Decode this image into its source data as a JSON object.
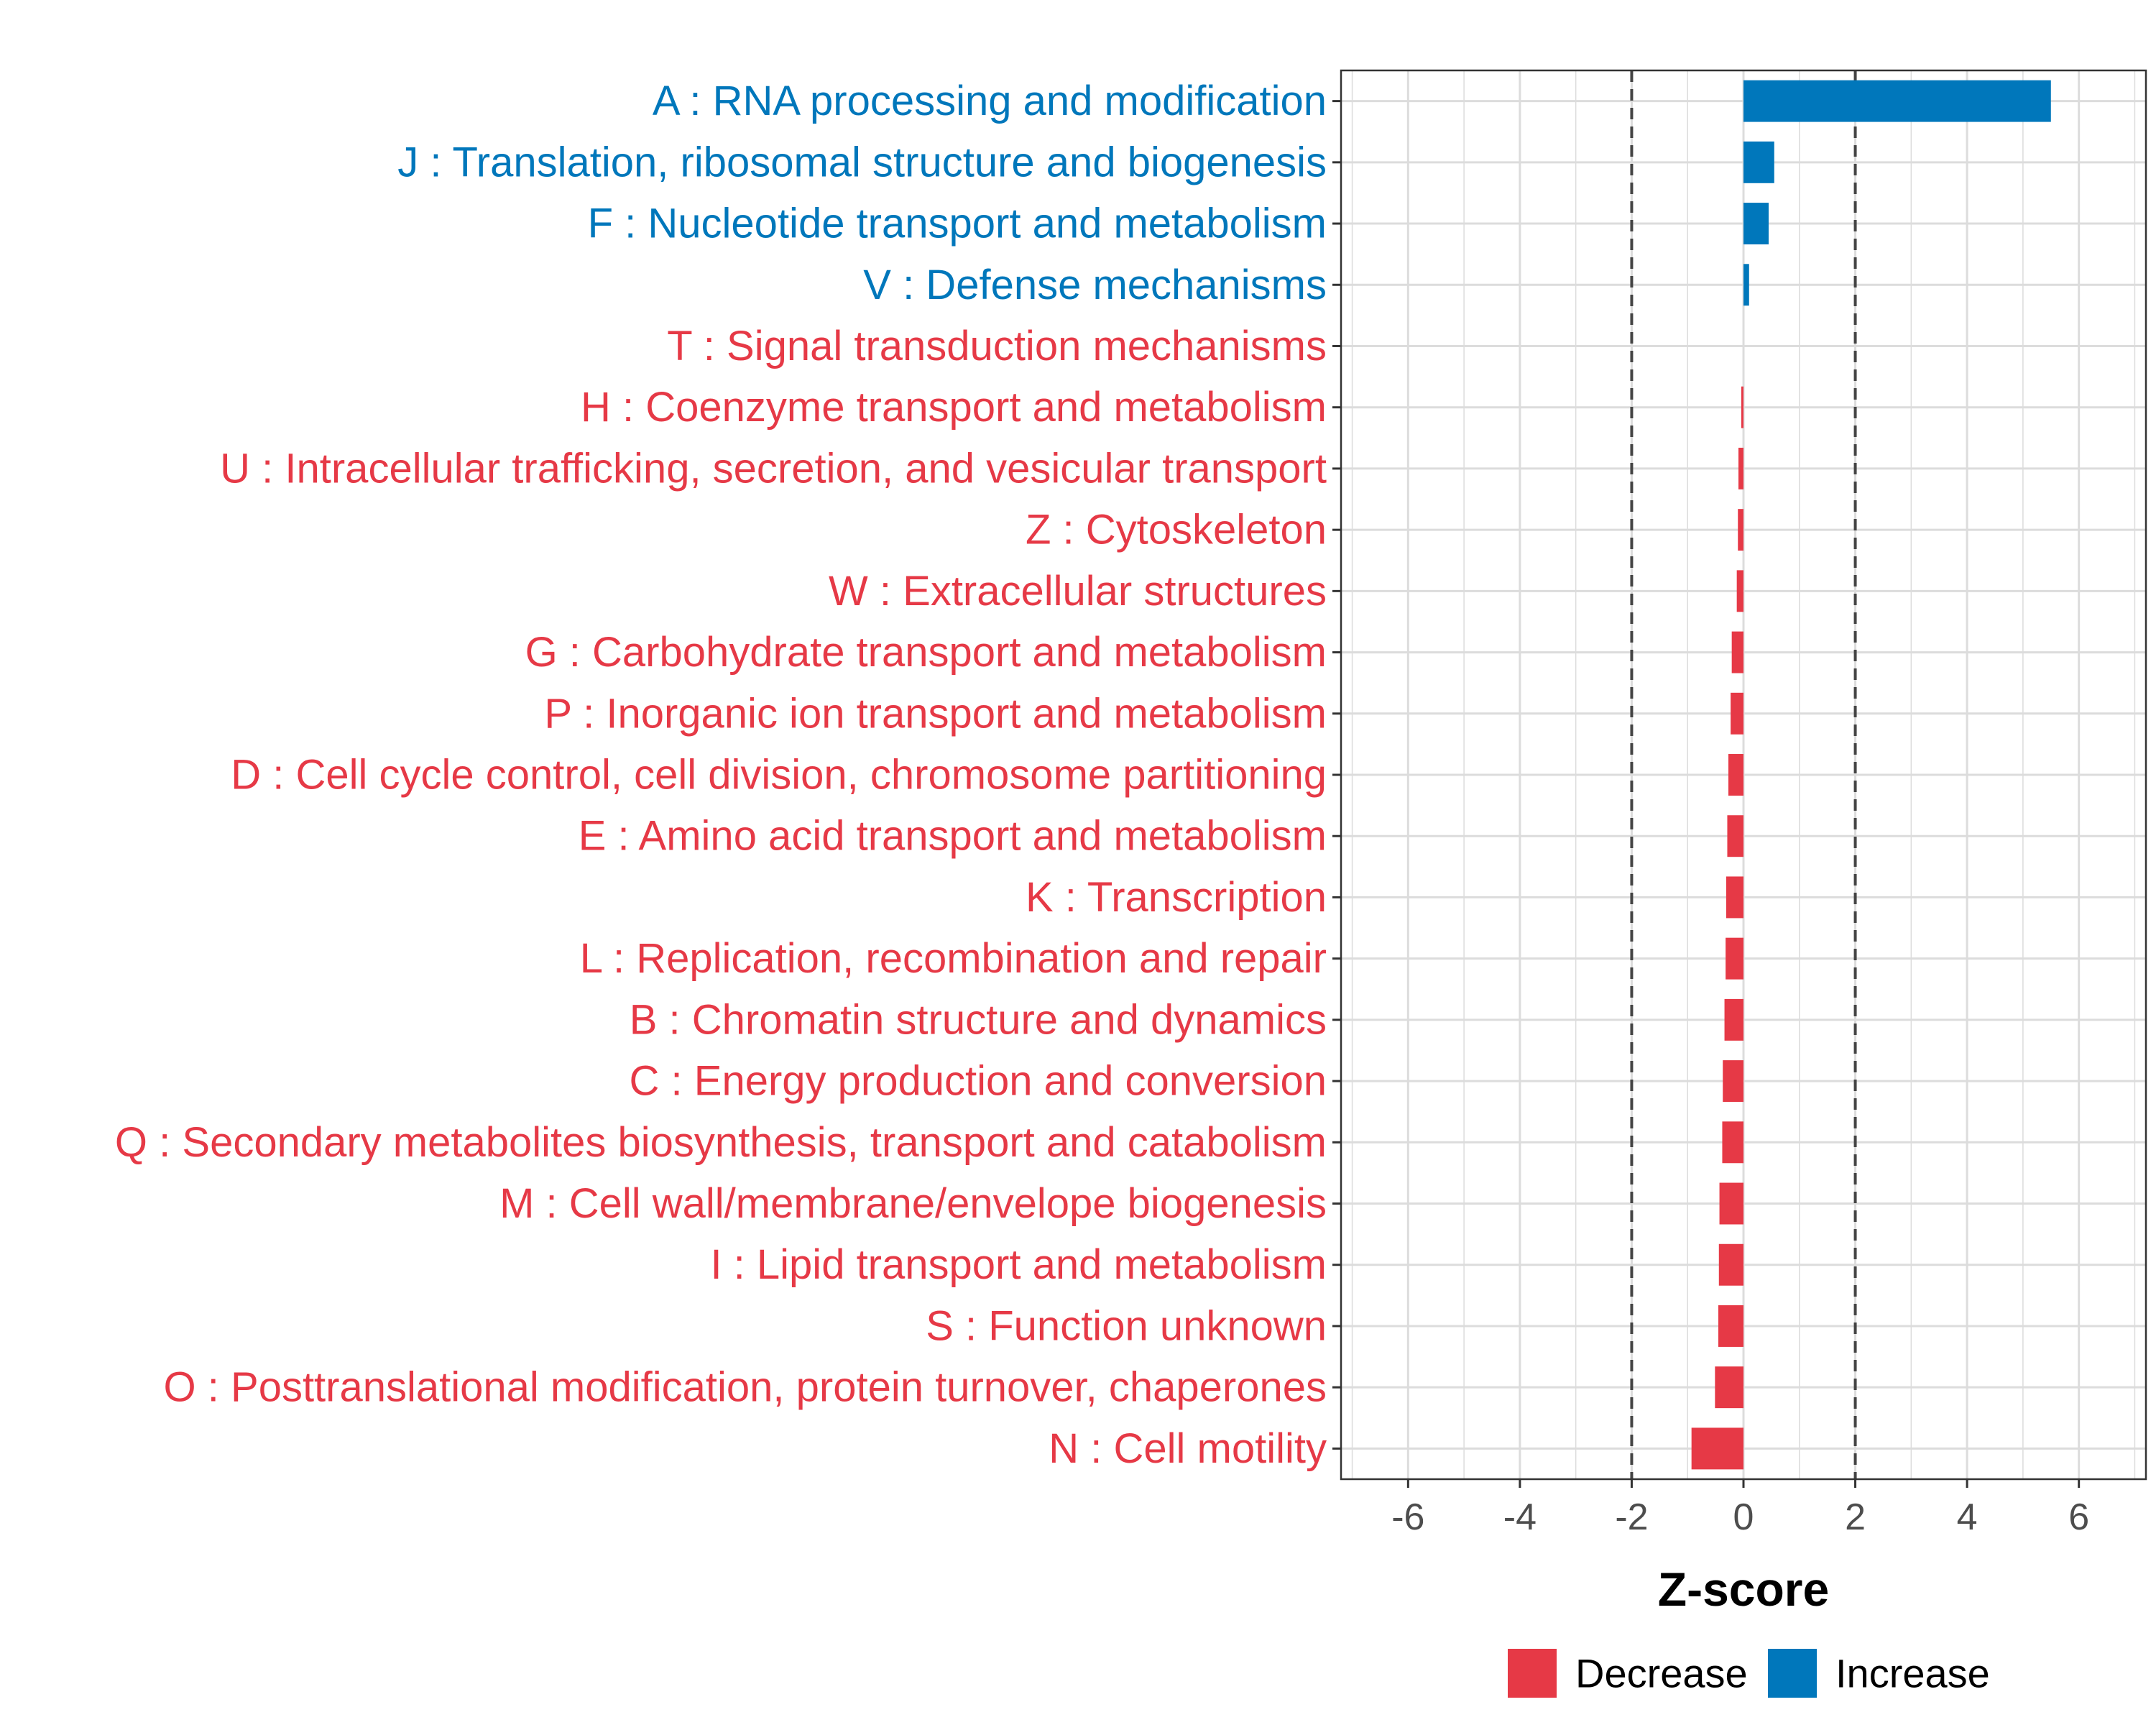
{
  "chart_data": {
    "type": "bar",
    "orientation": "horizontal",
    "xlabel": "Z-score",
    "ylabel": "",
    "xlim": [
      -7.2,
      7.2
    ],
    "xticks": [
      -6,
      -4,
      -2,
      0,
      2,
      4,
      6
    ],
    "xtick_labels": [
      "-6",
      "-4",
      "-2",
      "0",
      "2",
      "4",
      "6"
    ],
    "reference_lines": [
      -2,
      2
    ],
    "grid": true,
    "categories": [
      "A : RNA processing and modification",
      "J : Translation, ribosomal structure and biogenesis",
      "F : Nucleotide transport and metabolism",
      "V : Defense mechanisms",
      "T : Signal transduction mechanisms",
      "H : Coenzyme transport and metabolism",
      "U : Intracellular trafficking, secretion, and vesicular transport",
      "Z : Cytoskeleton",
      "W : Extracellular structures",
      "G : Carbohydrate transport and metabolism",
      "P : Inorganic ion transport and metabolism",
      "D : Cell cycle control, cell division, chromosome partitioning",
      "E : Amino acid transport and metabolism",
      "K : Transcription",
      "L : Replication, recombination and repair",
      "B : Chromatin structure and dynamics",
      "C : Energy production and conversion",
      "Q : Secondary metabolites biosynthesis, transport and catabolism",
      "M : Cell wall/membrane/envelope biogenesis",
      "I : Lipid transport and metabolism",
      "S : Function unknown",
      "O : Posttranslational modification, protein turnover, chaperones",
      "N : Cell motility"
    ],
    "values": [
      5.5,
      0.55,
      0.45,
      0.1,
      0.0,
      -0.04,
      -0.09,
      -0.1,
      -0.12,
      -0.21,
      -0.23,
      -0.27,
      -0.29,
      -0.31,
      -0.32,
      -0.34,
      -0.37,
      -0.38,
      -0.43,
      -0.44,
      -0.45,
      -0.51,
      -0.93
    ],
    "groups": [
      "Increase",
      "Increase",
      "Increase",
      "Increase",
      "Decrease",
      "Decrease",
      "Decrease",
      "Decrease",
      "Decrease",
      "Decrease",
      "Decrease",
      "Decrease",
      "Decrease",
      "Decrease",
      "Decrease",
      "Decrease",
      "Decrease",
      "Decrease",
      "Decrease",
      "Decrease",
      "Decrease",
      "Decrease",
      "Decrease"
    ],
    "legend": {
      "position": "bottom",
      "entries": [
        {
          "label": "Decrease",
          "color": "#e63946"
        },
        {
          "label": "Increase",
          "color": "#0077bb"
        }
      ]
    }
  }
}
